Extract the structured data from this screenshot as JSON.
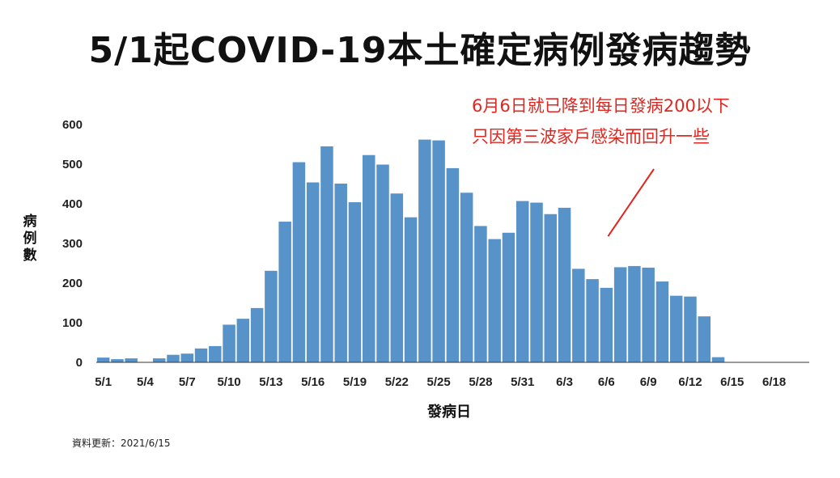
{
  "title": "5/1起COVID-19本土確定病例發病趨勢",
  "annotation": {
    "line1": "6月6日就已降到每日發病200以下",
    "line2": "只因第三波家戶感染而回升一些",
    "color": "#e0261f"
  },
  "footnote": "資料更新：2021/6/15",
  "chart_data": {
    "type": "bar",
    "title": "5/1起COVID-19本土確定病例發病趨勢",
    "xlabel": "發病日",
    "ylabel": "病例數",
    "ylim": [
      0,
      600
    ],
    "yticks": [
      0,
      100,
      200,
      300,
      400,
      500,
      600
    ],
    "bar_color": "#5793c9",
    "grid": false,
    "categories": [
      "5/1",
      "5/2",
      "5/3",
      "5/4",
      "5/5",
      "5/6",
      "5/7",
      "5/8",
      "5/9",
      "5/10",
      "5/11",
      "5/12",
      "5/13",
      "5/14",
      "5/15",
      "5/16",
      "5/17",
      "5/18",
      "5/19",
      "5/20",
      "5/21",
      "5/22",
      "5/23",
      "5/24",
      "5/25",
      "5/26",
      "5/27",
      "5/28",
      "5/29",
      "5/30",
      "5/31",
      "6/1",
      "6/2",
      "6/3",
      "6/4",
      "6/5",
      "6/6",
      "6/7",
      "6/8",
      "6/9",
      "6/10",
      "6/11",
      "6/12",
      "6/13",
      "6/14",
      "6/15",
      "6/16",
      "6/17",
      "6/18",
      "6/19",
      "6/20"
    ],
    "values": [
      12,
      8,
      10,
      1,
      10,
      19,
      22,
      35,
      41,
      95,
      110,
      137,
      231,
      355,
      505,
      454,
      545,
      451,
      404,
      523,
      499,
      426,
      366,
      562,
      560,
      490,
      428,
      344,
      311,
      327,
      407,
      403,
      374,
      390,
      236,
      210,
      188,
      240,
      243,
      239,
      204,
      168,
      166,
      116,
      13,
      0,
      0,
      0,
      0,
      0,
      0
    ],
    "xtick_labels": [
      "5/1",
      "5/4",
      "5/7",
      "5/10",
      "5/13",
      "5/16",
      "5/19",
      "5/22",
      "5/25",
      "5/28",
      "5/31",
      "6/3",
      "6/6",
      "6/9",
      "6/12",
      "6/15",
      "6/18"
    ]
  }
}
